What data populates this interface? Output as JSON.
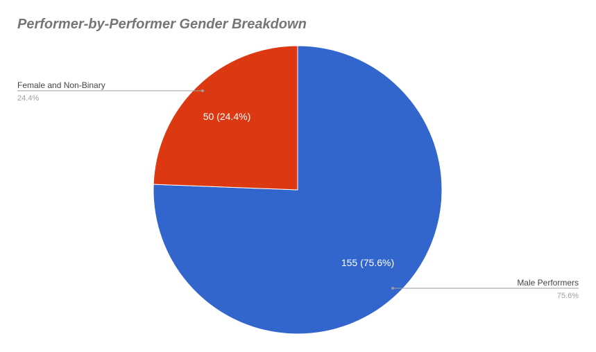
{
  "chart_data": {
    "type": "pie",
    "title": "Performer-by-Performer Gender Breakdown",
    "slices": [
      {
        "name": "Male Performers",
        "value": 155,
        "percent": "75.6%",
        "data_label": "155 (75.6%)",
        "color": "#3366cc"
      },
      {
        "name": "Female and Non-Binary",
        "value": 50,
        "percent": "24.4%",
        "data_label": "50 (24.4%)",
        "color": "#dc3912"
      }
    ],
    "legend": "labeled leader lines"
  }
}
